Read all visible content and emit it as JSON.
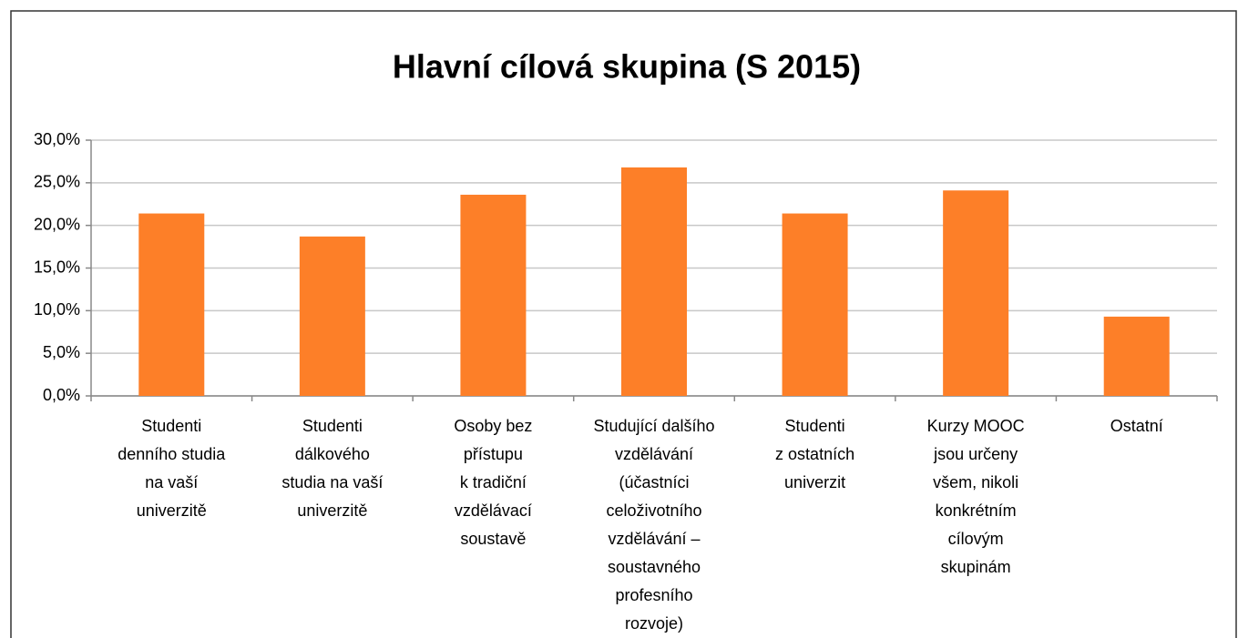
{
  "chart_data": {
    "type": "bar",
    "title": "Hlavní cílová skupina (S 2015)",
    "categories": [
      [
        "Studenti",
        "denního studia",
        "na vaší",
        "univerzitě"
      ],
      [
        "Studenti",
        "dálkového",
        "studia na vaší",
        "univerzitě"
      ],
      [
        "Osoby bez",
        "přístupu",
        "k tradiční",
        "vzdělávací",
        "soustavě"
      ],
      [
        "Studující dalšího",
        "vzdělávání",
        "(účastníci",
        "celoživotního",
        "vzdělávání –",
        "soustavného",
        "profesního",
        "rozvoje)"
      ],
      [
        "Studenti",
        "z ostatních",
        "univerzit"
      ],
      [
        "Kurzy MOOC",
        "jsou určeny",
        "všem, nikoli",
        "konkrétním",
        "cílovým",
        "skupinám"
      ],
      [
        "Ostatní"
      ]
    ],
    "values": [
      21.4,
      18.7,
      23.6,
      26.8,
      21.4,
      24.1,
      9.3
    ],
    "color": "#fd7f28",
    "ylim": [
      0,
      30
    ],
    "yticks": [
      {
        "value": 0,
        "label": "0,0%"
      },
      {
        "value": 5,
        "label": "5,0%"
      },
      {
        "value": 10,
        "label": "10,0%"
      },
      {
        "value": 15,
        "label": "15,0%"
      },
      {
        "value": 20,
        "label": "20,0%"
      },
      {
        "value": 25,
        "label": "25,0%"
      },
      {
        "value": 30,
        "label": "30,0%"
      }
    ],
    "grid": true
  }
}
